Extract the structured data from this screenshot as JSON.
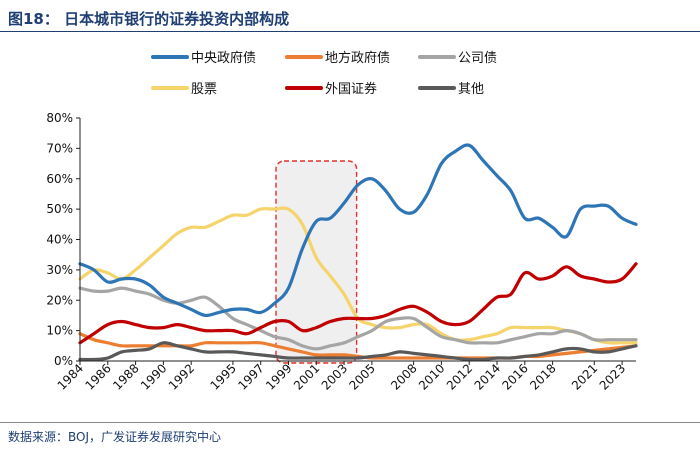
{
  "figure": {
    "title": "图18：  日本城市银行的证券投资内部构成",
    "source": "数据来源：BOJ，广发证券发展研究中心"
  },
  "chart_data": {
    "type": "line",
    "title": "日本城市银行的证券投资内部构成",
    "y_unit": "percent",
    "ylim": [
      0,
      80
    ],
    "yticks": [
      0,
      10,
      20,
      30,
      40,
      50,
      60,
      70,
      80
    ],
    "ytick_labels": [
      "0%",
      "10%",
      "20%",
      "30%",
      "40%",
      "50%",
      "60%",
      "70%",
      "80%"
    ],
    "xlim": [
      1984,
      2024
    ],
    "xticks": [
      1984,
      1986,
      1988,
      1990,
      1992,
      1995,
      1997,
      1999,
      2001,
      2003,
      2005,
      2008,
      2010,
      2012,
      2014,
      2016,
      2018,
      2021,
      2023
    ],
    "xtick_labels": [
      "1984",
      "1986",
      "1988",
      "1990",
      "1992",
      "1995",
      "1997",
      "1999",
      "2001",
      "2003",
      "2005",
      "2008",
      "2010",
      "2012",
      "2014",
      "2016",
      "2018",
      "2021",
      "2023"
    ],
    "legend_position": "top",
    "highlight_region": {
      "x_start": 1998.1,
      "x_end": 2003.9,
      "style": "dashed red box"
    },
    "series": [
      {
        "name": "中央政府债",
        "color": "#2e75b6",
        "x": [
          1984,
          1985,
          1986,
          1987,
          1988,
          1989,
          1990,
          1991,
          1992,
          1993,
          1994,
          1995,
          1996,
          1997,
          1998,
          1999,
          2000,
          2001,
          2002,
          2003,
          2004,
          2005,
          2006,
          2007,
          2008,
          2009,
          2010,
          2011,
          2012,
          2013,
          2014,
          2015,
          2016,
          2017,
          2018,
          2019,
          2020,
          2021,
          2022,
          2023,
          2024
        ],
        "y": [
          32,
          30,
          26,
          27,
          27,
          25,
          21,
          19,
          17,
          15,
          16,
          17,
          17,
          16,
          19,
          24,
          37,
          46,
          47,
          52,
          58,
          60,
          56,
          50,
          49,
          55,
          65,
          69,
          71,
          66,
          61,
          56,
          47,
          47,
          44,
          41,
          50,
          51,
          51,
          47,
          45
        ]
      },
      {
        "name": "地方政府债",
        "color": "#ed7d31",
        "x": [
          1984,
          1985,
          1986,
          1987,
          1988,
          1989,
          1990,
          1991,
          1992,
          1993,
          1994,
          1995,
          1996,
          1997,
          1998,
          1999,
          2000,
          2001,
          2002,
          2003,
          2004,
          2005,
          2006,
          2007,
          2008,
          2009,
          2010,
          2011,
          2012,
          2013,
          2014,
          2015,
          2016,
          2017,
          2018,
          2019,
          2020,
          2021,
          2022,
          2023,
          2024
        ],
        "y": [
          9,
          7,
          6,
          5,
          5,
          5,
          5,
          5,
          5,
          6,
          6,
          6,
          6,
          6,
          5,
          4,
          3,
          2,
          2,
          2,
          1.5,
          1,
          1,
          1,
          1,
          1,
          1,
          1,
          1,
          1,
          1,
          1,
          1.5,
          1.5,
          2,
          2.5,
          3,
          3.5,
          4,
          4.5,
          5
        ]
      },
      {
        "name": "公司债",
        "color": "#a5a5a5",
        "x": [
          1984,
          1985,
          1986,
          1987,
          1988,
          1989,
          1990,
          1991,
          1992,
          1993,
          1994,
          1995,
          1996,
          1997,
          1998,
          1999,
          2000,
          2001,
          2002,
          2003,
          2004,
          2005,
          2006,
          2007,
          2008,
          2009,
          2010,
          2011,
          2012,
          2013,
          2014,
          2015,
          2016,
          2017,
          2018,
          2019,
          2020,
          2021,
          2022,
          2023,
          2024
        ],
        "y": [
          24,
          23,
          23,
          24,
          23,
          22,
          20,
          19,
          20,
          21,
          18,
          14,
          12,
          10,
          8,
          7,
          5,
          4,
          5,
          6,
          8,
          10,
          13,
          14,
          14,
          11,
          8,
          7,
          6,
          6,
          6,
          7,
          8,
          9,
          9,
          10,
          9,
          7,
          7,
          7,
          7
        ]
      },
      {
        "name": "股票",
        "color": "#f4d46b",
        "x": [
          1984,
          1985,
          1986,
          1987,
          1988,
          1989,
          1990,
          1991,
          1992,
          1993,
          1994,
          1995,
          1996,
          1997,
          1998,
          1999,
          2000,
          2001,
          2002,
          2003,
          2004,
          2005,
          2006,
          2007,
          2008,
          2009,
          2010,
          2011,
          2012,
          2013,
          2014,
          2015,
          2016,
          2017,
          2018,
          2019,
          2020,
          2021,
          2022,
          2023,
          2024
        ],
        "y": [
          27,
          30,
          29,
          27,
          30,
          34,
          38,
          42,
          44,
          44,
          46,
          48,
          48,
          50,
          50,
          50,
          45,
          34,
          28,
          22,
          14,
          12,
          11,
          11,
          12,
          12,
          9,
          7,
          7,
          8,
          9,
          11,
          11,
          11,
          11,
          10,
          9,
          7,
          6,
          6,
          6
        ]
      },
      {
        "name": "外国证券",
        "color": "#c00000",
        "x": [
          1984,
          1985,
          1986,
          1987,
          1988,
          1989,
          1990,
          1991,
          1992,
          1993,
          1994,
          1995,
          1996,
          1997,
          1998,
          1999,
          2000,
          2001,
          2002,
          2003,
          2004,
          2005,
          2006,
          2007,
          2008,
          2009,
          2010,
          2011,
          2012,
          2013,
          2014,
          2015,
          2016,
          2017,
          2018,
          2019,
          2020,
          2021,
          2022,
          2023,
          2024
        ],
        "y": [
          6,
          9,
          12,
          13,
          12,
          11,
          11,
          12,
          11,
          10,
          10,
          10,
          9,
          11,
          13,
          13,
          10,
          11,
          13,
          14,
          14,
          14,
          15,
          17,
          18,
          16,
          13,
          12,
          13,
          17,
          21,
          22,
          29,
          27,
          28,
          31,
          28,
          27,
          26,
          27,
          32
        ]
      },
      {
        "name": "其他",
        "color": "#595959",
        "x": [
          1984,
          1985,
          1986,
          1987,
          1988,
          1989,
          1990,
          1991,
          1992,
          1993,
          1994,
          1995,
          1996,
          1997,
          1998,
          1999,
          2000,
          2001,
          2002,
          2003,
          2004,
          2005,
          2006,
          2007,
          2008,
          2009,
          2010,
          2011,
          2012,
          2013,
          2014,
          2015,
          2016,
          2017,
          2018,
          2019,
          2020,
          2021,
          2022,
          2023,
          2024
        ],
        "y": [
          0.5,
          0.5,
          1,
          3,
          3.5,
          4,
          6,
          5,
          4,
          3,
          3,
          3,
          2.5,
          2,
          1.5,
          1,
          1,
          1,
          1,
          1,
          1,
          1.5,
          2,
          3,
          2.5,
          2,
          1.5,
          1,
          0.5,
          0.5,
          1,
          1,
          1.5,
          2,
          3,
          4,
          4,
          3,
          3,
          4,
          5
        ]
      }
    ]
  }
}
